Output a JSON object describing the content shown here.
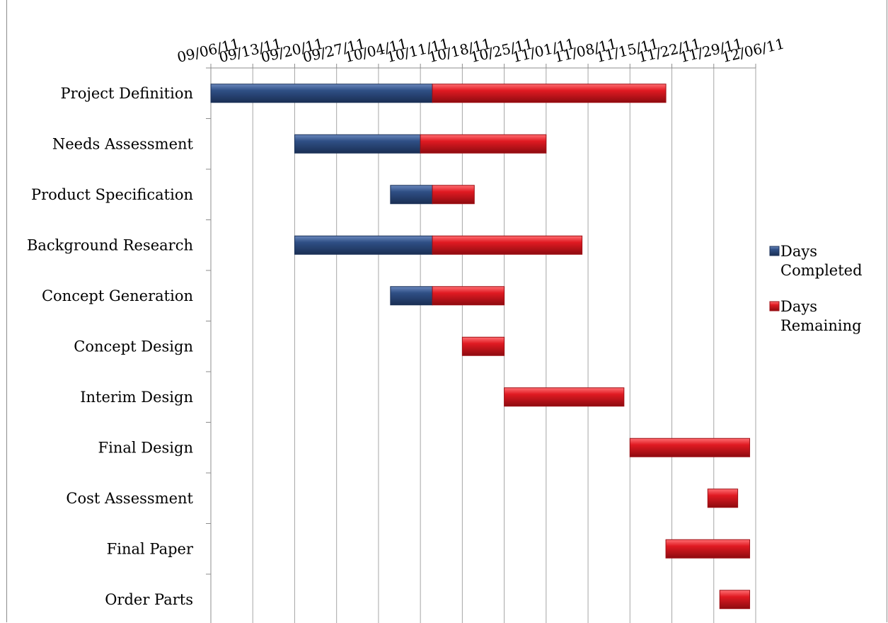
{
  "colors": {
    "completed": "#2f4f85",
    "completed_dark": "#1c3258",
    "remaining": "#e01a22",
    "remaining_dark": "#9e0f14",
    "gridline": "#a6a6a6",
    "axis": "#8c8c8c"
  },
  "chart_data": {
    "type": "bar",
    "orientation": "horizontal",
    "stacked": true,
    "title": "",
    "xlabel": "",
    "ylabel": "",
    "x_axis_position": "top",
    "x_tick_format": "MM/DD/YY",
    "x_ticks": [
      "09/06/11",
      "09/13/11",
      "09/20/11",
      "09/27/11",
      "10/04/11",
      "10/11/11",
      "10/18/11",
      "10/25/11",
      "11/01/11",
      "11/08/11",
      "11/15/11",
      "11/22/11",
      "11/29/11",
      "12/06/11"
    ],
    "xlim": [
      "2011-09-06",
      "2011-12-06"
    ],
    "grid": true,
    "legend_position": "right",
    "categories": [
      "Project Definition",
      "Needs Assessment",
      "Product Specification",
      "Background Research",
      "Concept Generation",
      "Concept Design",
      "Interim Design",
      "Final Design",
      "Cost Assessment",
      "Final Paper",
      "Order Parts"
    ],
    "start_dates": [
      "2011-09-06",
      "2011-09-20",
      "2011-10-06",
      "2011-09-20",
      "2011-10-06",
      "2011-10-18",
      "2011-10-25",
      "2011-11-15",
      "2011-11-28",
      "2011-11-21",
      "2011-11-30"
    ],
    "series": [
      {
        "name": "Days Completed",
        "values": [
          37,
          21,
          7,
          23,
          7,
          0,
          0,
          0,
          0,
          0,
          0
        ]
      },
      {
        "name": "Days Remaining",
        "values": [
          39,
          21,
          7,
          25,
          12,
          7,
          20,
          20,
          5,
          14,
          5
        ]
      }
    ]
  }
}
